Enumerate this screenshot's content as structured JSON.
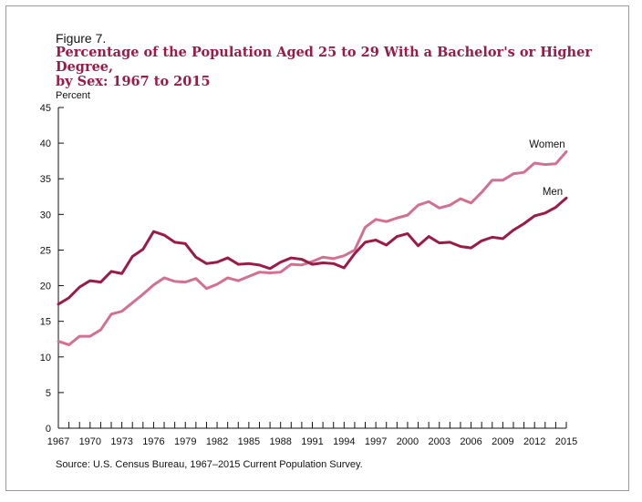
{
  "figure": {
    "label": "Figure 7.",
    "title_line1": "Percentage of the Population Aged 25 to 29 With a Bachelor's or Higher Degree,",
    "title_line2": "by Sex: 1967 to 2015",
    "source": "Source: U.S. Census Bureau, 1967–2015 Current Population Survey."
  },
  "colors": {
    "women": "#d4708f",
    "men": "#9b1b45",
    "title": "#9b1b45",
    "axis": "#111111"
  },
  "chart_data": {
    "type": "line",
    "title": "Percentage of the Population Aged 25 to 29 With a Bachelor's or Higher Degree, by Sex: 1967 to 2015",
    "ylabel": "Percent",
    "xlabel": "",
    "ylim": [
      0,
      45
    ],
    "xlim": [
      1967,
      2015
    ],
    "y_ticks": [
      0,
      5,
      10,
      15,
      20,
      25,
      30,
      35,
      40,
      45
    ],
    "x_tick_labels": [
      "1967",
      "1970",
      "1973",
      "1976",
      "1979",
      "1982",
      "1985",
      "1988",
      "1991",
      "1994",
      "1997",
      "2000",
      "2003",
      "2006",
      "2009",
      "2012",
      "2015"
    ],
    "grid": false,
    "x": [
      1967,
      1968,
      1969,
      1970,
      1971,
      1972,
      1973,
      1974,
      1975,
      1976,
      1977,
      1978,
      1979,
      1980,
      1981,
      1982,
      1983,
      1984,
      1985,
      1986,
      1987,
      1988,
      1989,
      1990,
      1991,
      1992,
      1993,
      1994,
      1995,
      1996,
      1997,
      1998,
      1999,
      2000,
      2001,
      2002,
      2003,
      2004,
      2005,
      2006,
      2007,
      2008,
      2009,
      2010,
      2011,
      2012,
      2013,
      2014,
      2015
    ],
    "series": [
      {
        "name": "Women",
        "values": [
          12.2,
          11.7,
          12.9,
          12.9,
          13.8,
          16.0,
          16.4,
          17.6,
          18.8,
          20.1,
          21.1,
          20.6,
          20.5,
          21.0,
          19.6,
          20.2,
          21.1,
          20.7,
          21.3,
          21.9,
          21.8,
          21.9,
          23.0,
          22.9,
          23.4,
          24.0,
          23.8,
          24.2,
          25.0,
          28.2,
          29.3,
          29.0,
          29.5,
          29.9,
          31.3,
          31.8,
          30.9,
          31.3,
          32.2,
          31.6,
          33.1,
          34.8,
          34.8,
          35.7,
          35.9,
          37.2,
          37.0,
          37.1,
          38.8
        ]
      },
      {
        "name": "Men",
        "values": [
          17.4,
          18.3,
          19.8,
          20.7,
          20.5,
          22.0,
          21.7,
          24.1,
          25.1,
          27.6,
          27.1,
          26.1,
          25.9,
          24.0,
          23.1,
          23.3,
          23.9,
          23.0,
          23.1,
          22.9,
          22.4,
          23.3,
          23.9,
          23.7,
          23.0,
          23.2,
          23.1,
          22.5,
          24.5,
          26.1,
          26.4,
          25.7,
          26.9,
          27.3,
          25.6,
          26.9,
          26.0,
          26.1,
          25.5,
          25.3,
          26.3,
          26.8,
          26.6,
          27.8,
          28.7,
          29.8,
          30.2,
          31.0,
          32.3
        ]
      }
    ]
  }
}
